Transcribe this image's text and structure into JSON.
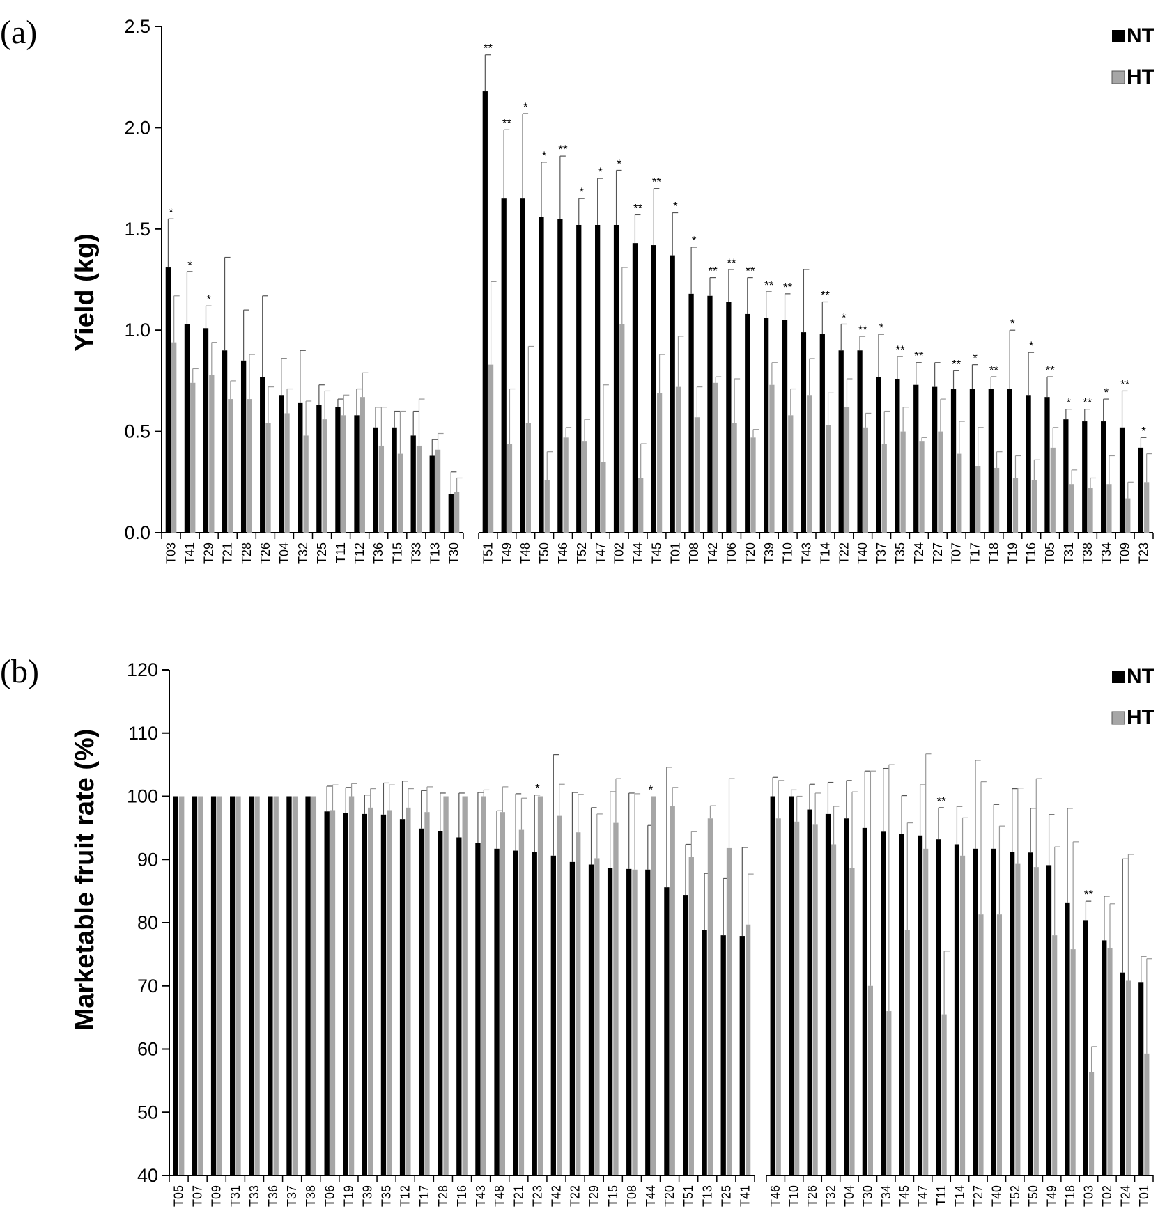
{
  "chart_data": [
    {
      "panel": "(a)",
      "type": "bar",
      "ylabel": "Yield (kg)",
      "ylim": [
        0,
        2.5
      ],
      "yticks": [
        "0.0",
        "0.5",
        "1.0",
        "1.5",
        "2.0",
        "2.5"
      ],
      "legend_placement": "top-right",
      "series_names": [
        "NT",
        "HT"
      ],
      "colors": {
        "NT": "#000000",
        "HT": "#a6a6a6"
      },
      "groups": [
        {
          "categories": [
            "T03",
            "T41",
            "T29",
            "T21",
            "T28",
            "T26",
            "T04",
            "T32",
            "T25",
            "T11",
            "T12",
            "T36",
            "T15",
            "T33",
            "T13",
            "T30"
          ],
          "NT": [
            1.31,
            1.03,
            1.01,
            0.9,
            0.85,
            0.77,
            0.68,
            0.64,
            0.63,
            0.62,
            0.58,
            0.52,
            0.52,
            0.48,
            0.38,
            0.19
          ],
          "NT_err": [
            0.24,
            0.26,
            0.11,
            0.46,
            0.25,
            0.4,
            0.18,
            0.26,
            0.1,
            0.04,
            0.13,
            0.1,
            0.08,
            0.12,
            0.08,
            0.11
          ],
          "HT": [
            0.94,
            0.74,
            0.78,
            0.66,
            0.66,
            0.54,
            0.59,
            0.48,
            0.56,
            0.58,
            0.67,
            0.43,
            0.39,
            0.43,
            0.41,
            0.2
          ],
          "HT_err": [
            0.23,
            0.07,
            0.16,
            0.09,
            0.22,
            0.18,
            0.12,
            0.17,
            0.14,
            0.1,
            0.12,
            0.19,
            0.21,
            0.23,
            0.08,
            0.07
          ],
          "sig": [
            "*",
            "*",
            "*",
            "",
            "",
            "",
            "",
            "",
            "",
            "",
            "",
            "",
            "",
            "",
            "",
            ""
          ]
        },
        {
          "categories": [
            "T51",
            "T49",
            "T48",
            "T50",
            "T46",
            "T52",
            "T47",
            "T02",
            "T44",
            "T45",
            "T01",
            "T08",
            "T42",
            "T06",
            "T20",
            "T39",
            "T10",
            "T43",
            "T14",
            "T22",
            "T40",
            "T37",
            "T35",
            "T24",
            "T27",
            "T07",
            "T17",
            "T18",
            "T19",
            "T16",
            "T05",
            "T31",
            "T38",
            "T34",
            "T09",
            "T23"
          ],
          "NT": [
            2.18,
            1.65,
            1.65,
            1.56,
            1.55,
            1.52,
            1.52,
            1.52,
            1.43,
            1.42,
            1.37,
            1.18,
            1.17,
            1.14,
            1.08,
            1.06,
            1.05,
            0.99,
            0.98,
            0.9,
            0.9,
            0.77,
            0.76,
            0.73,
            0.72,
            0.71,
            0.71,
            0.71,
            0.71,
            0.68,
            0.67,
            0.56,
            0.55,
            0.55,
            0.52,
            0.42
          ],
          "NT_err": [
            0.18,
            0.34,
            0.42,
            0.27,
            0.31,
            0.13,
            0.23,
            0.27,
            0.14,
            0.28,
            0.21,
            0.23,
            0.09,
            0.16,
            0.18,
            0.13,
            0.13,
            0.31,
            0.16,
            0.13,
            0.07,
            0.21,
            0.11,
            0.11,
            0.12,
            0.09,
            0.12,
            0.06,
            0.29,
            0.21,
            0.1,
            0.05,
            0.06,
            0.11,
            0.18,
            0.05
          ],
          "HT": [
            0.83,
            0.44,
            0.54,
            0.26,
            0.47,
            0.45,
            0.35,
            1.03,
            0.27,
            0.69,
            0.72,
            0.57,
            0.74,
            0.54,
            0.47,
            0.73,
            0.58,
            0.68,
            0.53,
            0.62,
            0.52,
            0.44,
            0.5,
            0.45,
            0.5,
            0.39,
            0.33,
            0.32,
            0.27,
            0.26,
            0.42,
            0.24,
            0.22,
            0.24,
            0.17,
            0.25
          ],
          "HT_err": [
            0.41,
            0.27,
            0.38,
            0.14,
            0.05,
            0.11,
            0.38,
            0.28,
            0.17,
            0.19,
            0.25,
            0.15,
            0.03,
            0.22,
            0.04,
            0.11,
            0.13,
            0.18,
            0.16,
            0.14,
            0.07,
            0.16,
            0.12,
            0.02,
            0.16,
            0.16,
            0.19,
            0.08,
            0.11,
            0.1,
            0.1,
            0.07,
            0.05,
            0.14,
            0.08,
            0.14
          ],
          "sig": [
            "**",
            "**",
            "*",
            "*",
            "**",
            "*",
            "*",
            "*",
            "**",
            "**",
            "*",
            "*",
            "**",
            "**",
            "**",
            "**",
            "**",
            "",
            "**",
            "*",
            "**",
            "*",
            "**",
            "**",
            "",
            "**",
            "*",
            "**",
            "*",
            "*",
            "**",
            "*",
            "**",
            "*",
            "**",
            "*"
          ]
        }
      ]
    },
    {
      "panel": "(b)",
      "type": "bar",
      "ylabel": "Marketable fruit rate (%)",
      "ylim": [
        40,
        120
      ],
      "yticks": [
        "40",
        "50",
        "60",
        "70",
        "80",
        "90",
        "100",
        "110",
        "120"
      ],
      "legend_placement": "top-right",
      "series_names": [
        "NT",
        "HT"
      ],
      "colors": {
        "NT": "#000000",
        "HT": "#a6a6a6"
      },
      "groups": [
        {
          "categories": [
            "T05",
            "T07",
            "T09",
            "T31",
            "T33",
            "T36",
            "T37",
            "T38",
            "T06",
            "T19",
            "T39",
            "T35",
            "T12",
            "T17",
            "T28",
            "T16",
            "T43",
            "T48",
            "T21",
            "T23",
            "T42",
            "T22",
            "T29",
            "T15",
            "T08",
            "T44",
            "T20",
            "T51",
            "T13",
            "T25",
            "T41"
          ],
          "NT": [
            100,
            100,
            100,
            100,
            100,
            100,
            100,
            100,
            97.6,
            97.4,
            97.2,
            97.1,
            96.4,
            94.9,
            94.5,
            93.5,
            92.6,
            91.7,
            91.4,
            91.2,
            90.6,
            89.6,
            89.2,
            88.7,
            88.5,
            88.4,
            85.6,
            84.4,
            78.8,
            78.0,
            77.9
          ],
          "NT_err": [
            0,
            0,
            0,
            0,
            0,
            0,
            0,
            0,
            4,
            4,
            3,
            5,
            6,
            6,
            6,
            7,
            8,
            6,
            9,
            9,
            16,
            11,
            9,
            12,
            12,
            7,
            19,
            8,
            9,
            9,
            14
          ],
          "HT": [
            100,
            100,
            100,
            100,
            100,
            100,
            100,
            100,
            97.8,
            100,
            98.2,
            97.8,
            98.2,
            97.5,
            100,
            100,
            100,
            97.5,
            94.7,
            100,
            96.9,
            94.3,
            90.2,
            95.8,
            88.4,
            100,
            98.4,
            90.4,
            96.5,
            91.8,
            79.7
          ],
          "HT_err": [
            0,
            0,
            0,
            0,
            0,
            0,
            0,
            0,
            4,
            2,
            3,
            4,
            3,
            4,
            0,
            0,
            1,
            4,
            5,
            0,
            5,
            6,
            7,
            7,
            12,
            0,
            3,
            4,
            2,
            11,
            8
          ],
          "sig": [
            "",
            "",
            "",
            "",
            "",
            "",
            "",
            "",
            "",
            "",
            "",
            "",
            "",
            "",
            "",
            "",
            "",
            "",
            "",
            "*",
            "",
            "",
            "",
            "",
            "",
            "*",
            "",
            "",
            "",
            "",
            ""
          ]
        },
        {
          "categories": [
            "T46",
            "T10",
            "T26",
            "T32",
            "T04",
            "T30",
            "T34",
            "T45",
            "T47",
            "T11",
            "T14",
            "T27",
            "T40",
            "T52",
            "T50",
            "T49",
            "T18",
            "T03",
            "T02",
            "T24",
            "T01"
          ],
          "NT": [
            100,
            100,
            97.9,
            97.2,
            96.5,
            95.0,
            94.4,
            94.1,
            93.8,
            93.2,
            92.4,
            91.7,
            91.7,
            91.2,
            91.1,
            89.1,
            83.1,
            80.4,
            77.2,
            72.1,
            70.6
          ],
          "NT_err": [
            3,
            1,
            4,
            5,
            6,
            9,
            10,
            6,
            8,
            5,
            6,
            14,
            7,
            10,
            7,
            8,
            15,
            3,
            7,
            18,
            4
          ],
          "HT": [
            96.5,
            96.0,
            95.5,
            92.4,
            88.7,
            70.0,
            66.0,
            78.8,
            91.7,
            65.5,
            90.6,
            81.3,
            81.3,
            89.3,
            88.8,
            78.0,
            75.8,
            56.4,
            76.0,
            70.8,
            59.3
          ],
          "HT_err": [
            6,
            4,
            5,
            6,
            12,
            34,
            39,
            17,
            15,
            10,
            6,
            21,
            14,
            12,
            14,
            14,
            17,
            4,
            7,
            20,
            15
          ],
          "sig": [
            "",
            "",
            "",
            "",
            "",
            "",
            "",
            "",
            "",
            "**",
            "",
            "",
            "",
            "",
            "",
            "",
            "",
            "**",
            "",
            "",
            ""
          ]
        }
      ]
    }
  ]
}
